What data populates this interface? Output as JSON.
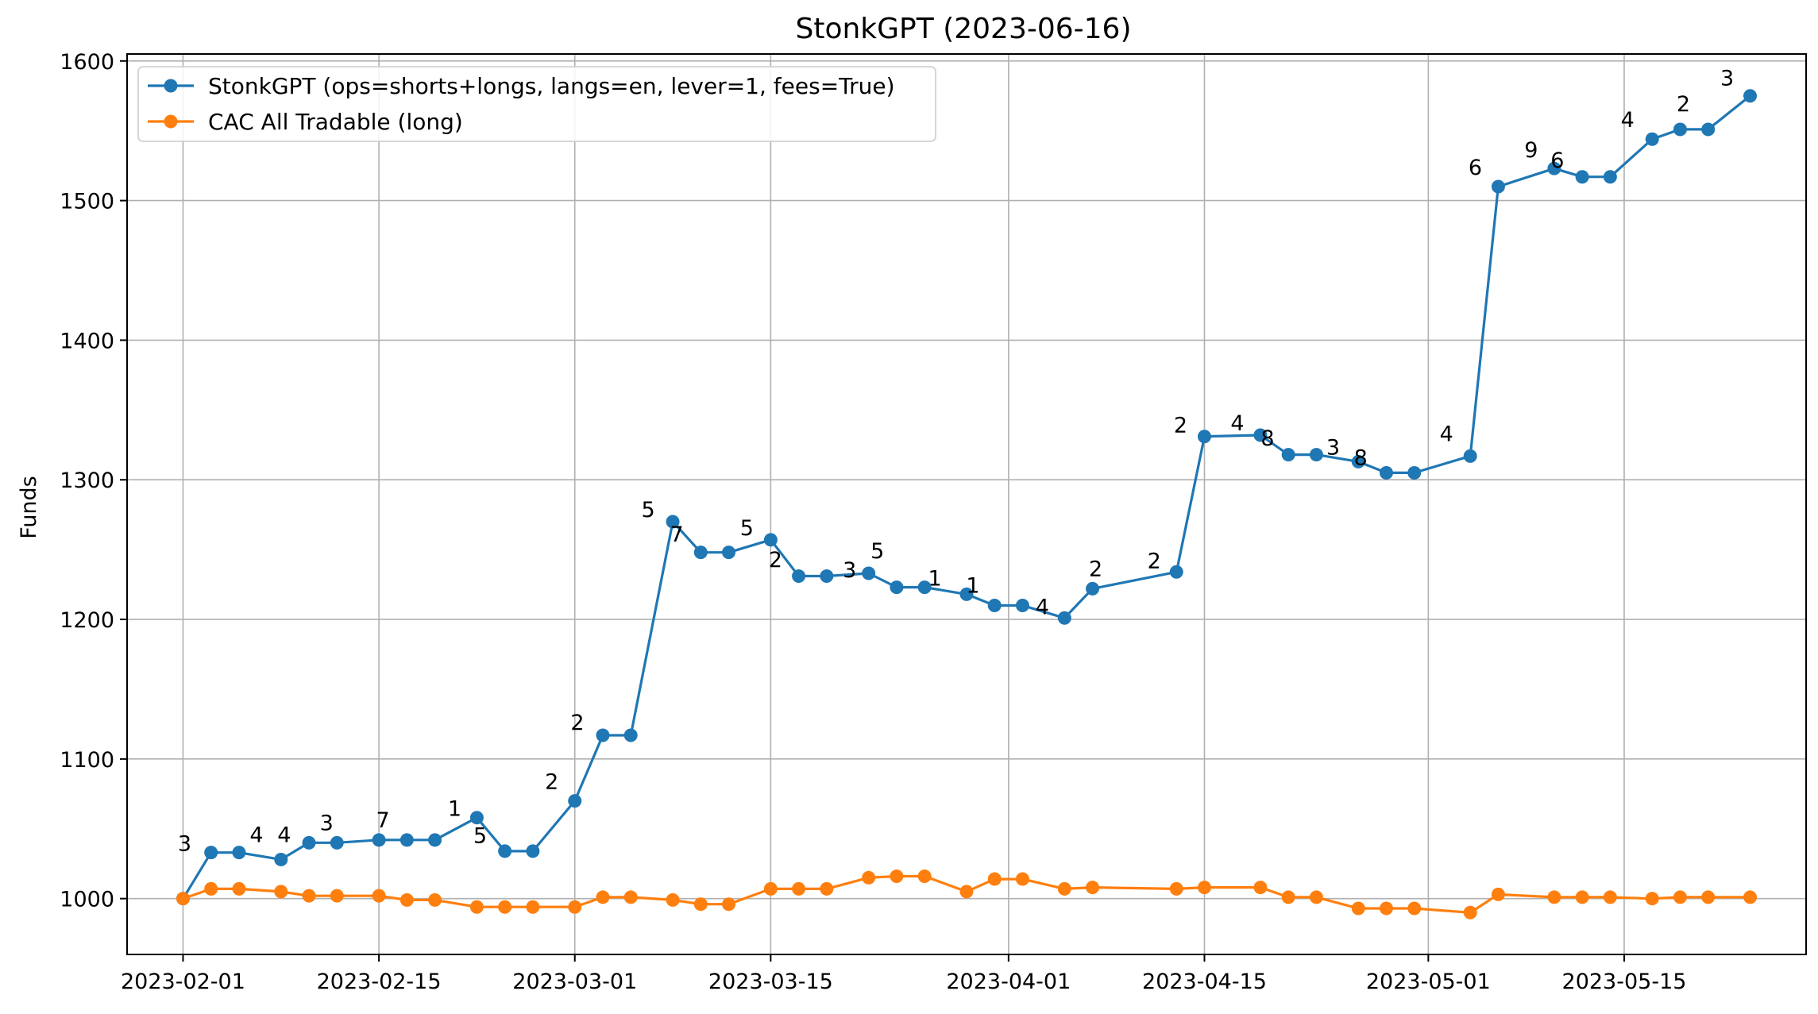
{
  "chart_data": {
    "type": "line",
    "title": "StonkGPT (2023-06-16)",
    "xlabel": "",
    "ylabel": "Funds",
    "ylim": [
      960,
      1605
    ],
    "xlim": [
      "2023-01-28",
      "2023-05-28"
    ],
    "x_ticks": [
      "2023-02-01",
      "2023-02-15",
      "2023-03-01",
      "2023-03-15",
      "2023-04-01",
      "2023-04-15",
      "2023-05-01",
      "2023-05-15"
    ],
    "y_ticks": [
      1000,
      1100,
      1200,
      1300,
      1400,
      1500,
      1600
    ],
    "grid": true,
    "legend_position": "top-left",
    "series": [
      {
        "name": "StonkGPT (ops=shorts+longs, langs=en, lever=1, fees=True)",
        "color": "#1f77b4",
        "points": [
          [
            "2023-02-01",
            1000
          ],
          [
            "2023-02-03",
            1033
          ],
          [
            "2023-02-05",
            1033
          ],
          [
            "2023-02-08",
            1028
          ],
          [
            "2023-02-10",
            1040
          ],
          [
            "2023-02-12",
            1040
          ],
          [
            "2023-02-15",
            1042
          ],
          [
            "2023-02-17",
            1042
          ],
          [
            "2023-02-19",
            1042
          ],
          [
            "2023-02-22",
            1058
          ],
          [
            "2023-02-24",
            1034
          ],
          [
            "2023-02-26",
            1034
          ],
          [
            "2023-03-01",
            1070
          ],
          [
            "2023-03-03",
            1117
          ],
          [
            "2023-03-05",
            1117
          ],
          [
            "2023-03-08",
            1270
          ],
          [
            "2023-03-10",
            1248
          ],
          [
            "2023-03-12",
            1248
          ],
          [
            "2023-03-15",
            1257
          ],
          [
            "2023-03-17",
            1231
          ],
          [
            "2023-03-19",
            1231
          ],
          [
            "2023-03-22",
            1233
          ],
          [
            "2023-03-24",
            1223
          ],
          [
            "2023-03-26",
            1223
          ],
          [
            "2023-03-29",
            1218
          ],
          [
            "2023-03-31",
            1210
          ],
          [
            "2023-04-02",
            1210
          ],
          [
            "2023-04-05",
            1201
          ],
          [
            "2023-04-07",
            1222
          ],
          [
            "2023-04-13",
            1234
          ],
          [
            "2023-04-15",
            1331
          ],
          [
            "2023-04-19",
            1332
          ],
          [
            "2023-04-21",
            1318
          ],
          [
            "2023-04-23",
            1318
          ],
          [
            "2023-04-26",
            1313
          ],
          [
            "2023-04-28",
            1305
          ],
          [
            "2023-04-30",
            1305
          ],
          [
            "2023-05-04",
            1317
          ],
          [
            "2023-05-06",
            1510
          ],
          [
            "2023-05-10",
            1523
          ],
          [
            "2023-05-12",
            1517
          ],
          [
            "2023-05-14",
            1517
          ],
          [
            "2023-05-17",
            1544
          ],
          [
            "2023-05-19",
            1551
          ],
          [
            "2023-05-21",
            1551
          ],
          [
            "2023-05-24",
            1575
          ]
        ]
      },
      {
        "name": "CAC All Tradable (long)",
        "color": "#ff7f0e",
        "points": [
          [
            "2023-02-01",
            1000
          ],
          [
            "2023-02-03",
            1007
          ],
          [
            "2023-02-05",
            1007
          ],
          [
            "2023-02-08",
            1005
          ],
          [
            "2023-02-10",
            1002
          ],
          [
            "2023-02-12",
            1002
          ],
          [
            "2023-02-15",
            1002
          ],
          [
            "2023-02-17",
            999
          ],
          [
            "2023-02-19",
            999
          ],
          [
            "2023-02-22",
            994
          ],
          [
            "2023-02-24",
            994
          ],
          [
            "2023-02-26",
            994
          ],
          [
            "2023-03-01",
            994
          ],
          [
            "2023-03-03",
            1001
          ],
          [
            "2023-03-05",
            1001
          ],
          [
            "2023-03-08",
            999
          ],
          [
            "2023-03-10",
            996
          ],
          [
            "2023-03-12",
            996
          ],
          [
            "2023-03-15",
            1007
          ],
          [
            "2023-03-17",
            1007
          ],
          [
            "2023-03-19",
            1007
          ],
          [
            "2023-03-22",
            1015
          ],
          [
            "2023-03-24",
            1016
          ],
          [
            "2023-03-26",
            1016
          ],
          [
            "2023-03-29",
            1005
          ],
          [
            "2023-03-31",
            1014
          ],
          [
            "2023-04-02",
            1014
          ],
          [
            "2023-04-05",
            1007
          ],
          [
            "2023-04-07",
            1008
          ],
          [
            "2023-04-13",
            1007
          ],
          [
            "2023-04-15",
            1008
          ],
          [
            "2023-04-19",
            1008
          ],
          [
            "2023-04-21",
            1001
          ],
          [
            "2023-04-23",
            1001
          ],
          [
            "2023-04-26",
            993
          ],
          [
            "2023-04-28",
            993
          ],
          [
            "2023-04-30",
            993
          ],
          [
            "2023-05-04",
            990
          ],
          [
            "2023-05-06",
            1003
          ],
          [
            "2023-05-10",
            1001
          ],
          [
            "2023-05-12",
            1001
          ],
          [
            "2023-05-14",
            1001
          ],
          [
            "2023-05-17",
            1000
          ],
          [
            "2023-05-19",
            1001
          ],
          [
            "2023-05-21",
            1001
          ],
          [
            "2023-05-24",
            1001
          ]
        ]
      }
    ],
    "annotations": [
      {
        "text": "3",
        "x": "2023-02-01",
        "y": 1000
      },
      {
        "text": "4",
        "x": "2023-02-05",
        "y": 1033
      },
      {
        "text": "4",
        "x": "2023-02-08",
        "y": 1028
      },
      {
        "text": "3",
        "x": "2023-02-12",
        "y": 1040
      },
      {
        "text": "7",
        "x": "2023-02-15",
        "y": 1042
      },
      {
        "text": "1",
        "x": "2023-02-22",
        "y": 1058
      },
      {
        "text": "5",
        "x": "2023-02-22",
        "y": 1058
      },
      {
        "text": "2",
        "x": "2023-03-01",
        "y": 1070
      },
      {
        "text": "2",
        "x": "2023-03-03",
        "y": 1117
      },
      {
        "text": "5",
        "x": "2023-03-08",
        "y": 1270
      },
      {
        "text": "7",
        "x": "2023-03-08",
        "y": 1270
      },
      {
        "text": "5",
        "x": "2023-03-15",
        "y": 1257
      },
      {
        "text": "2",
        "x": "2023-03-15",
        "y": 1257
      },
      {
        "text": "5",
        "x": "2023-03-22",
        "y": 1233
      },
      {
        "text": "3",
        "x": "2023-03-22",
        "y": 1233
      },
      {
        "text": "1",
        "x": "2023-03-26",
        "y": 1223
      },
      {
        "text": "1",
        "x": "2023-03-29",
        "y": 1218
      },
      {
        "text": "4",
        "x": "2023-04-05",
        "y": 1201
      },
      {
        "text": "2",
        "x": "2023-04-07",
        "y": 1222
      },
      {
        "text": "2",
        "x": "2023-04-13",
        "y": 1234
      },
      {
        "text": "2",
        "x": "2023-04-15",
        "y": 1331
      },
      {
        "text": "4",
        "x": "2023-04-19",
        "y": 1332
      },
      {
        "text": "8",
        "x": "2023-04-19",
        "y": 1332
      },
      {
        "text": "3",
        "x": "2023-04-23",
        "y": 1318
      },
      {
        "text": "8",
        "x": "2023-04-26",
        "y": 1313
      },
      {
        "text": "4",
        "x": "2023-05-04",
        "y": 1317
      },
      {
        "text": "6",
        "x": "2023-05-06",
        "y": 1510
      },
      {
        "text": "9",
        "x": "2023-05-10",
        "y": 1523
      },
      {
        "text": "6",
        "x": "2023-05-10",
        "y": 1523
      },
      {
        "text": "4",
        "x": "2023-05-17",
        "y": 1544
      },
      {
        "text": "2",
        "x": "2023-05-19",
        "y": 1551
      },
      {
        "text": "3",
        "x": "2023-05-24",
        "y": 1575
      }
    ]
  }
}
